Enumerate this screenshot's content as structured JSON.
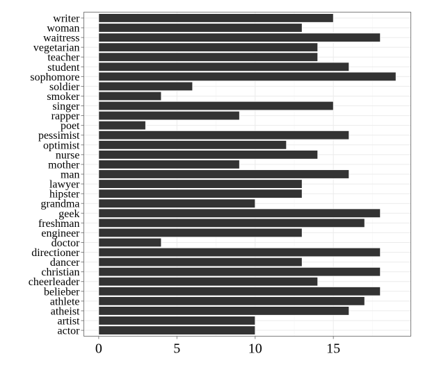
{
  "chart_data": {
    "type": "bar",
    "orientation": "horizontal",
    "title": "",
    "xlabel": "",
    "ylabel": "",
    "categories": [
      "writer",
      "woman",
      "waitress",
      "vegetarian",
      "teacher",
      "student",
      "sophomore",
      "soldier",
      "smoker",
      "singer",
      "rapper",
      "poet",
      "pessimist",
      "optimist",
      "nurse",
      "mother",
      "man",
      "lawyer",
      "hipster",
      "grandma",
      "geek",
      "freshman",
      "engineer",
      "doctor",
      "directioner",
      "dancer",
      "christian",
      "cheerleader",
      "belieber",
      "athlete",
      "atheist",
      "artist",
      "actor"
    ],
    "values": [
      15,
      13,
      18,
      14,
      14,
      16,
      19,
      6,
      4,
      15,
      9,
      3,
      16,
      12,
      14,
      9,
      16,
      13,
      13,
      10,
      18,
      17,
      13,
      4,
      18,
      13,
      18,
      14,
      18,
      17,
      16,
      10,
      10
    ],
    "xticks": [
      0,
      5,
      10,
      15
    ],
    "xtick_labels": [
      "0",
      "5",
      "10",
      "15"
    ],
    "xlim": [
      -0.95,
      19.95
    ],
    "grid": true,
    "colors": {
      "bar": "#333333",
      "bar_border": "#ffffff",
      "grid": "#ebebeb",
      "panel_border": "#7f7f7f"
    }
  }
}
